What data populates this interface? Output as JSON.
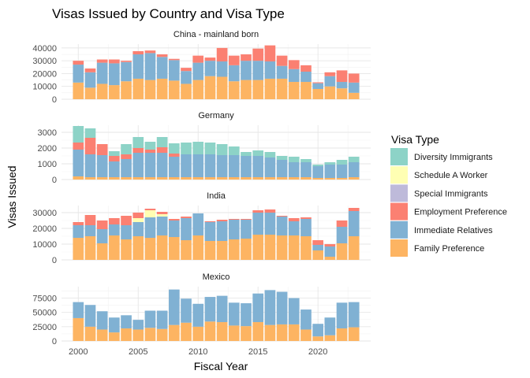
{
  "chart_data": {
    "type": "bar",
    "stacked": true,
    "title": "Visas Issued by Country and Visa Type",
    "xlabel": "Fiscal Year",
    "ylabel": "Visas Issued",
    "legend_title": "Visa Type",
    "legend_position": "right",
    "grid": true,
    "x": [
      2000,
      2001,
      2002,
      2003,
      2004,
      2005,
      2006,
      2007,
      2008,
      2009,
      2010,
      2011,
      2012,
      2013,
      2014,
      2015,
      2016,
      2017,
      2018,
      2019,
      2020,
      2021,
      2022,
      2023
    ],
    "x_ticks": [
      "2000",
      "2005",
      "2010",
      "2015",
      "2020"
    ],
    "series_order": [
      "Family Preference",
      "Immediate Relatives",
      "Special Immigrants",
      "Schedule A Worker",
      "Employment Preference",
      "Diversity Immigrants"
    ],
    "legend_order": [
      "Diversity Immigrants",
      "Schedule A Worker",
      "Special Immigrants",
      "Employment Preference",
      "Immediate Relatives",
      "Family Preference"
    ],
    "colors": {
      "Diversity Immigrants": "#8DD3C7",
      "Schedule A Worker": "#FFFFB3",
      "Special Immigrants": "#BEBADA",
      "Employment Preference": "#FB8072",
      "Immediate Relatives": "#80B1D3",
      "Family Preference": "#FDB462"
    },
    "panels": [
      {
        "name": "China - mainland born",
        "ylim": [
          0,
          43000
        ],
        "y_ticks": [
          0,
          10000,
          20000,
          30000,
          40000
        ],
        "y_tick_labels": [
          "0",
          "10000",
          "20000",
          "30000",
          "40000"
        ],
        "series": [
          {
            "name": "Family Preference",
            "values": [
              13000,
              9000,
              12000,
              11000,
              14000,
              16000,
              15000,
              16000,
              14500,
              12000,
              15000,
              18000,
              17500,
              14000,
              15000,
              15000,
              16000,
              16000,
              13500,
              13500,
              8000,
              10000,
              8500,
              5000
            ]
          },
          {
            "name": "Immediate Relatives",
            "values": [
              14000,
              12000,
              16500,
              17000,
              15000,
              19000,
              21000,
              17000,
              16000,
              10000,
              13500,
              12000,
              12000,
              12500,
              15000,
              15000,
              13500,
              10000,
              10000,
              8000,
              4500,
              8000,
              5000,
              8000
            ]
          },
          {
            "name": "Special Immigrants",
            "values": [
              0,
              0,
              0,
              0,
              0,
              0,
              0,
              0,
              0,
              0,
              0,
              0,
              0,
              0,
              0,
              0,
              0,
              0,
              0,
              0,
              0,
              0,
              0,
              0
            ]
          },
          {
            "name": "Schedule A Worker",
            "values": [
              0,
              0,
              0,
              0,
              0,
              0,
              0,
              0,
              0,
              0,
              0,
              0,
              0,
              0,
              0,
              0,
              0,
              0,
              0,
              0,
              0,
              0,
              0,
              0
            ]
          },
          {
            "name": "Employment Preference",
            "values": [
              3000,
              3000,
              2500,
              3000,
              1000,
              2500,
              2000,
              2000,
              1000,
              2500,
              5500,
              2500,
              10500,
              7500,
              5000,
              9500,
              12500,
              8000,
              7000,
              5000,
              700,
              3000,
              9000,
              7000
            ]
          },
          {
            "name": "Diversity Immigrants",
            "values": [
              0,
              0,
              0,
              0,
              0,
              0,
              0,
              0,
              0,
              0,
              0,
              0,
              0,
              0,
              0,
              0,
              0,
              0,
              0,
              0,
              0,
              0,
              0,
              0
            ]
          }
        ]
      },
      {
        "name": "Germany",
        "ylim": [
          0,
          3450
        ],
        "y_ticks": [
          0,
          1000,
          2000,
          3000
        ],
        "y_tick_labels": [
          "0",
          "1000",
          "2000",
          "3000"
        ],
        "series": [
          {
            "name": "Family Preference",
            "values": [
              200,
              150,
              150,
              150,
              150,
              150,
              150,
              150,
              150,
              150,
              150,
              150,
              150,
              150,
              150,
              150,
              150,
              150,
              150,
              150,
              100,
              100,
              100,
              150
            ]
          },
          {
            "name": "Immediate Relatives",
            "values": [
              1700,
              1450,
              1400,
              1000,
              1150,
              1550,
              1550,
              1550,
              1300,
              1450,
              1450,
              1450,
              1400,
              1400,
              1350,
              1350,
              1250,
              1100,
              950,
              950,
              750,
              850,
              850,
              950
            ]
          },
          {
            "name": "Special Immigrants",
            "values": [
              0,
              0,
              0,
              0,
              0,
              0,
              0,
              0,
              0,
              0,
              0,
              0,
              0,
              0,
              0,
              0,
              0,
              0,
              0,
              0,
              0,
              0,
              0,
              0
            ]
          },
          {
            "name": "Schedule A Worker",
            "values": [
              0,
              0,
              0,
              0,
              0,
              0,
              0,
              0,
              0,
              0,
              0,
              0,
              0,
              0,
              0,
              0,
              0,
              0,
              0,
              0,
              0,
              0,
              0,
              0
            ]
          },
          {
            "name": "Employment Preference",
            "values": [
              450,
              1050,
              700,
              350,
              300,
              300,
              200,
              350,
              200,
              0,
              0,
              0,
              0,
              0,
              0,
              0,
              0,
              0,
              0,
              0,
              0,
              0,
              0,
              0
            ]
          },
          {
            "name": "Diversity Immigrants",
            "values": [
              1050,
              600,
              0,
              300,
              650,
              700,
              500,
              650,
              650,
              750,
              800,
              750,
              700,
              550,
              250,
              350,
              350,
              250,
              350,
              200,
              100,
              150,
              300,
              350
            ]
          }
        ]
      },
      {
        "name": "India",
        "ylim": [
          0,
          34500
        ],
        "y_ticks": [
          0,
          10000,
          20000,
          30000
        ],
        "y_tick_labels": [
          "0",
          "10000",
          "20000",
          "30000"
        ],
        "series": [
          {
            "name": "Family Preference",
            "values": [
              14000,
              15000,
              10500,
              15500,
              13000,
              15000,
              14000,
              15500,
              14500,
              12500,
              15500,
              12000,
              12000,
              13000,
              13500,
              16000,
              16000,
              15500,
              15500,
              15000,
              6000,
              2000,
              10500,
              15000
            ]
          },
          {
            "name": "Immediate Relatives",
            "values": [
              8000,
              7000,
              9000,
              7000,
              9000,
              9000,
              13000,
              12000,
              10500,
              14000,
              14000,
              12000,
              12500,
              12500,
              12000,
              14000,
              14000,
              12000,
              9000,
              11000,
              3500,
              6500,
              10500,
              16000
            ]
          },
          {
            "name": "Special Immigrants",
            "values": [
              0,
              0,
              0,
              0,
              0,
              0,
              0,
              0,
              0,
              0,
              0,
              0,
              0,
              0,
              0,
              0,
              0,
              0,
              0,
              0,
              0,
              0,
              0,
              0
            ]
          },
          {
            "name": "Schedule A Worker",
            "values": [
              0,
              0,
              0,
              0,
              0,
              2500,
              4500,
              1500,
              0,
              0,
              0,
              0,
              0,
              0,
              0,
              0,
              0,
              0,
              0,
              0,
              0,
              0,
              0,
              0
            ]
          },
          {
            "name": "Employment Preference",
            "values": [
              2000,
              6500,
              5500,
              4000,
              6000,
              3500,
              1000,
              1500,
              1000,
              1000,
              0,
              500,
              1000,
              500,
              500,
              1500,
              2000,
              500,
              2000,
              1000,
              3000,
              1500,
              4000,
              2000
            ]
          },
          {
            "name": "Diversity Immigrants",
            "values": [
              0,
              0,
              0,
              0,
              0,
              0,
              0,
              0,
              0,
              0,
              0,
              0,
              0,
              0,
              0,
              0,
              0,
              0,
              0,
              0,
              0,
              0,
              0,
              0
            ]
          }
        ]
      },
      {
        "name": "Mexico",
        "ylim": [
          0,
          95000
        ],
        "y_ticks": [
          0,
          25000,
          50000,
          75000
        ],
        "y_tick_labels": [
          "0",
          "25000",
          "50000",
          "75000"
        ],
        "series": [
          {
            "name": "Family Preference",
            "values": [
              40000,
              25000,
              20000,
              15000,
              22000,
              20000,
              23000,
              21000,
              28000,
              32000,
              25000,
              34000,
              33000,
              27000,
              26000,
              33000,
              28000,
              29000,
              29000,
              20000,
              8000,
              10000,
              22000,
              24000
            ]
          },
          {
            "name": "Immediate Relatives",
            "values": [
              28000,
              38000,
              32000,
              26000,
              23000,
              17000,
              30000,
              32000,
              62000,
              42000,
              40000,
              43000,
              46000,
              40000,
              40000,
              50000,
              61000,
              57000,
              46000,
              35000,
              22000,
              31000,
              45000,
              44000
            ]
          },
          {
            "name": "Special Immigrants",
            "values": [
              0,
              0,
              0,
              0,
              0,
              0,
              0,
              0,
              0,
              0,
              0,
              0,
              0,
              0,
              0,
              0,
              0,
              0,
              0,
              0,
              0,
              0,
              0,
              0
            ]
          },
          {
            "name": "Schedule A Worker",
            "values": [
              0,
              0,
              0,
              0,
              0,
              0,
              0,
              0,
              0,
              0,
              0,
              0,
              0,
              0,
              0,
              0,
              0,
              0,
              0,
              0,
              0,
              0,
              0,
              0
            ]
          },
          {
            "name": "Employment Preference",
            "values": [
              0,
              0,
              0,
              0,
              0,
              0,
              0,
              0,
              0,
              0,
              0,
              0,
              0,
              0,
              0,
              0,
              0,
              0,
              0,
              0,
              0,
              0,
              0,
              0
            ]
          },
          {
            "name": "Diversity Immigrants",
            "values": [
              0,
              0,
              0,
              0,
              0,
              0,
              0,
              0,
              0,
              0,
              0,
              0,
              0,
              0,
              0,
              0,
              0,
              0,
              0,
              0,
              0,
              0,
              0,
              0
            ]
          }
        ]
      }
    ]
  }
}
